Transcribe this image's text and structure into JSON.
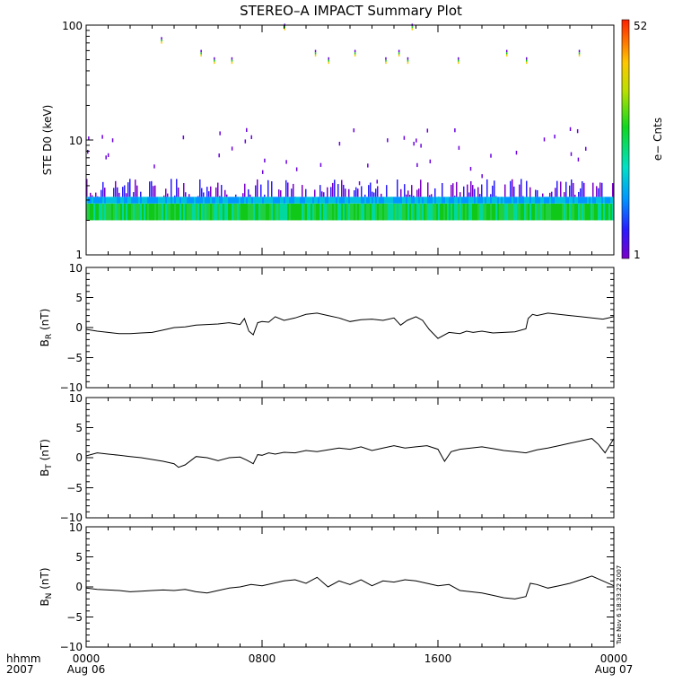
{
  "chart_data": [
    {
      "type": "heatmap",
      "title": "STEREO–A IMPACT Summary Plot",
      "ylabel": "STE D0 (keV)",
      "yscale": "log",
      "ylim": [
        1,
        100
      ],
      "y_tick_labels": [
        "1",
        "10",
        "100"
      ],
      "colorbar": {
        "label": "e− Cnts",
        "min_label": "1",
        "max_label": "52",
        "min": 1,
        "max": 52
      },
      "xlim_hours": [
        0,
        24
      ],
      "description_of_pattern": []
    },
    {
      "type": "line",
      "ylabel_main": "B",
      "ylabel_sub": "R",
      "ylabel_unit": " (nT)",
      "ylim": [
        -10,
        10
      ],
      "y_tick_labels": [
        "10",
        "5",
        "0",
        "−5",
        "−10"
      ],
      "x_hours": [
        0,
        0.5,
        1,
        1.5,
        2,
        2.5,
        3,
        3.5,
        4,
        4.5,
        5,
        5.5,
        6,
        6.5,
        7,
        7.2,
        7.4,
        7.6,
        7.8,
        8,
        8.3,
        8.6,
        9,
        9.5,
        10,
        10.5,
        11,
        11.5,
        12,
        12.5,
        13,
        13.5,
        14,
        14.3,
        14.6,
        15,
        15.3,
        15.6,
        16,
        16.5,
        17,
        17.3,
        17.6,
        18,
        18.5,
        19,
        19.5,
        20,
        20.1,
        20.3,
        20.5,
        21,
        21.5,
        22,
        22.5,
        23,
        23.5,
        24
      ],
      "values": [
        -0.3,
        -0.6,
        -0.8,
        -1.0,
        -1.0,
        -0.9,
        -0.8,
        -0.4,
        0.0,
        0.1,
        0.4,
        0.5,
        0.6,
        0.8,
        0.5,
        1.5,
        -0.6,
        -1.2,
        0.8,
        1.0,
        0.9,
        1.8,
        1.2,
        1.6,
        2.2,
        2.4,
        2.0,
        1.6,
        1.0,
        1.3,
        1.4,
        1.2,
        1.6,
        0.4,
        1.2,
        1.8,
        1.2,
        -0.3,
        -1.8,
        -0.8,
        -1.0,
        -0.6,
        -0.8,
        -0.6,
        -0.9,
        -0.8,
        -0.7,
        -0.2,
        1.5,
        2.2,
        2.0,
        2.4,
        2.2,
        2.0,
        1.8,
        1.6,
        1.4,
        1.8
      ]
    },
    {
      "type": "line",
      "ylabel_main": "B",
      "ylabel_sub": "T",
      "ylabel_unit": " (nT)",
      "ylim": [
        -10,
        10
      ],
      "y_tick_labels": [
        "10",
        "5",
        "0",
        "−5",
        "−10"
      ],
      "x_hours": [
        0,
        0.5,
        1,
        1.5,
        2,
        2.5,
        3,
        3.5,
        4,
        4.2,
        4.5,
        5,
        5.5,
        6,
        6.5,
        7,
        7.3,
        7.6,
        7.8,
        8,
        8.3,
        8.6,
        9,
        9.5,
        10,
        10.5,
        11,
        11.5,
        12,
        12.5,
        13,
        13.5,
        14,
        14.5,
        15,
        15.5,
        16,
        16.3,
        16.6,
        17,
        17.5,
        18,
        18.5,
        19,
        19.5,
        20,
        20.5,
        21,
        21.5,
        22,
        22.5,
        23,
        23.3,
        23.6,
        24
      ],
      "values": [
        0.3,
        0.8,
        0.6,
        0.4,
        0.2,
        0.0,
        -0.3,
        -0.6,
        -1.0,
        -1.6,
        -1.2,
        0.2,
        0.0,
        -0.5,
        0.0,
        0.1,
        -0.4,
        -1.0,
        0.5,
        0.4,
        0.8,
        0.6,
        0.9,
        0.8,
        1.2,
        1.0,
        1.3,
        1.6,
        1.4,
        1.8,
        1.2,
        1.6,
        2.0,
        1.6,
        1.8,
        2.0,
        1.4,
        -0.6,
        1.0,
        1.4,
        1.6,
        1.8,
        1.5,
        1.2,
        1.0,
        0.8,
        1.3,
        1.6,
        2.0,
        2.4,
        2.8,
        3.2,
        2.2,
        0.8,
        3.2
      ]
    },
    {
      "type": "line",
      "ylabel_main": "B",
      "ylabel_sub": "N",
      "ylabel_unit": " (nT)",
      "ylim": [
        -10,
        10
      ],
      "y_tick_labels": [
        "10",
        "5",
        "0",
        "−5",
        "−10"
      ],
      "x_hours": [
        0,
        0.5,
        1,
        1.5,
        2,
        2.5,
        3,
        3.5,
        4,
        4.5,
        5,
        5.5,
        6,
        6.5,
        7,
        7.5,
        8,
        8.5,
        9,
        9.5,
        10,
        10.5,
        11,
        11.5,
        12,
        12.5,
        13,
        13.5,
        14,
        14.5,
        15,
        15.5,
        16,
        16.5,
        17,
        17.5,
        18,
        18.5,
        19,
        19.5,
        20,
        20.2,
        20.5,
        21,
        21.5,
        22,
        22.5,
        23,
        23.5,
        24
      ],
      "values": [
        -0.2,
        -0.4,
        -0.5,
        -0.6,
        -0.8,
        -0.7,
        -0.6,
        -0.5,
        -0.6,
        -0.4,
        -0.8,
        -1.0,
        -0.6,
        -0.2,
        0.0,
        0.4,
        0.2,
        0.6,
        1.0,
        1.2,
        0.6,
        1.6,
        0.0,
        1.0,
        0.4,
        1.2,
        0.2,
        1.0,
        0.8,
        1.2,
        1.0,
        0.6,
        0.2,
        0.4,
        -0.6,
        -0.8,
        -1.0,
        -1.4,
        -1.8,
        -2.0,
        -1.6,
        0.6,
        0.4,
        -0.2,
        0.2,
        0.6,
        1.2,
        1.8,
        1.0,
        0.2
      ]
    }
  ],
  "x_axis": {
    "row_label_top": "hhmm",
    "row_label_bottom": "2007",
    "ticks": [
      {
        "hour": 0,
        "label": "0000",
        "sub": "Aug 06"
      },
      {
        "hour": 8,
        "label": "0800",
        "sub": ""
      },
      {
        "hour": 16,
        "label": "1600",
        "sub": ""
      },
      {
        "hour": 24,
        "label": "0000",
        "sub": "Aug 07"
      }
    ]
  },
  "timestamp": "Tue Nov  6 18:33:22 2007",
  "colors": {
    "line": "#000000",
    "axes": "#000000"
  }
}
